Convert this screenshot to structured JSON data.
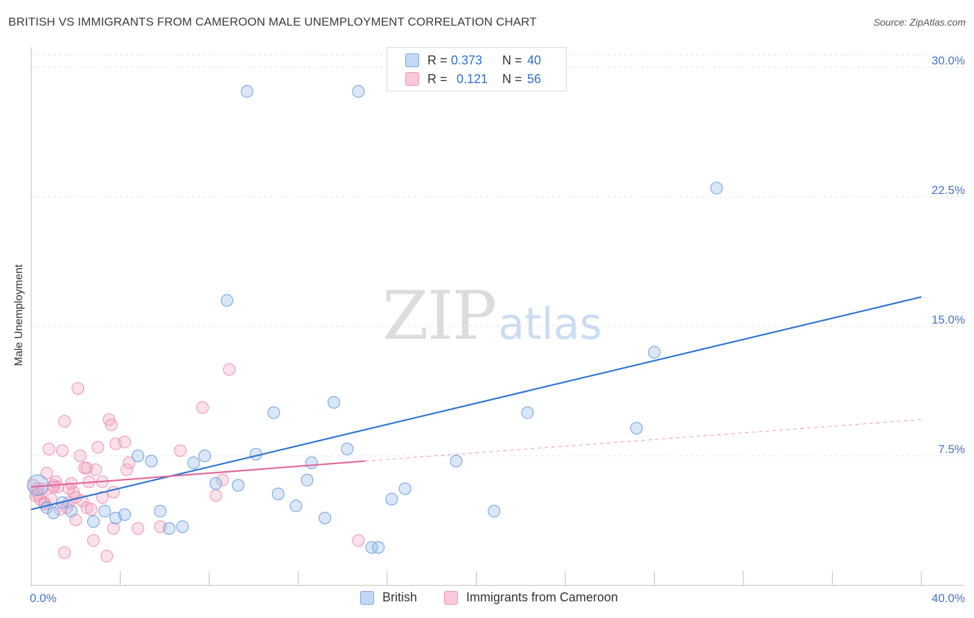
{
  "title": "BRITISH VS IMMIGRANTS FROM CAMEROON MALE UNEMPLOYMENT CORRELATION CHART",
  "source": "Source: ZipAtlas.com",
  "watermark": {
    "zip": "ZIP",
    "atlas": "atlas"
  },
  "colors": {
    "british_fill": "rgba(147,186,236,0.35)",
    "british_stroke": "#6a9ee0",
    "british_line": "#2e74d3",
    "cameroon_fill": "rgba(244,170,196,0.35)",
    "cameroon_stroke": "#ec8fb0",
    "cameroon_line": "#e0679a",
    "axis_text": "#3f73c9",
    "grid": "#e0e0e0"
  },
  "legend_top": {
    "rows": [
      {
        "r_label": "R =",
        "r_value": "0.373",
        "n_label": "N =",
        "n_value": "40"
      },
      {
        "r_label": "R =",
        "r_value": "0.121",
        "n_label": "N =",
        "n_value": "56"
      }
    ]
  },
  "legend_bottom": {
    "items": [
      {
        "label": "British"
      },
      {
        "label": "Immigrants from Cameroon"
      }
    ]
  },
  "chart_data": {
    "type": "scatter",
    "title": "BRITISH VS IMMIGRANTS FROM CAMEROON MALE UNEMPLOYMENT CORRELATION CHART",
    "xlabel": "",
    "ylabel": "Male Unemployment",
    "xlim": [
      0,
      40
    ],
    "ylim": [
      0,
      30
    ],
    "x_tick_labels": [
      "0.0%",
      "40.0%"
    ],
    "y_ticks": [
      7.5,
      15.0,
      22.5,
      30.0
    ],
    "y_tick_labels": [
      "7.5%",
      "15.0%",
      "22.5%",
      "30.0%"
    ],
    "grid": true,
    "legend_position": "top-center",
    "series": [
      {
        "name": "British",
        "R": 0.373,
        "N": 40,
        "trend": {
          "x": [
            0,
            40
          ],
          "y": [
            4.4,
            16.7
          ]
        },
        "points": [
          [
            0.3,
            5.8
          ],
          [
            0.7,
            4.5
          ],
          [
            1.0,
            4.2
          ],
          [
            1.4,
            4.8
          ],
          [
            1.8,
            4.3
          ],
          [
            2.8,
            3.7
          ],
          [
            3.3,
            4.3
          ],
          [
            3.8,
            3.9
          ],
          [
            4.2,
            4.1
          ],
          [
            4.8,
            7.5
          ],
          [
            5.4,
            7.2
          ],
          [
            5.8,
            4.3
          ],
          [
            6.2,
            3.3
          ],
          [
            6.8,
            3.4
          ],
          [
            7.3,
            7.1
          ],
          [
            7.8,
            7.5
          ],
          [
            8.3,
            5.9
          ],
          [
            8.8,
            16.5
          ],
          [
            9.3,
            5.8
          ],
          [
            9.7,
            28.6
          ],
          [
            10.1,
            7.6
          ],
          [
            10.9,
            10.0
          ],
          [
            11.1,
            5.3
          ],
          [
            11.9,
            4.6
          ],
          [
            12.4,
            6.1
          ],
          [
            12.6,
            7.1
          ],
          [
            13.2,
            3.9
          ],
          [
            13.6,
            10.6
          ],
          [
            14.2,
            7.9
          ],
          [
            14.7,
            28.6
          ],
          [
            15.3,
            2.2
          ],
          [
            15.6,
            2.2
          ],
          [
            16.2,
            5.0
          ],
          [
            16.8,
            5.6
          ],
          [
            19.1,
            7.2
          ],
          [
            20.8,
            4.3
          ],
          [
            22.3,
            10.0
          ],
          [
            27.2,
            9.1
          ],
          [
            28.0,
            13.5
          ],
          [
            30.8,
            23.0
          ]
        ]
      },
      {
        "name": "Immigrants from Cameroon",
        "R": 0.121,
        "N": 56,
        "trend": {
          "x": [
            0,
            15.0
          ],
          "y": [
            5.7,
            7.2
          ]
        },
        "trend_dashed": {
          "x": [
            15.0,
            40
          ],
          "y": [
            7.2,
            9.6
          ]
        },
        "points": [
          [
            0.1,
            5.8
          ],
          [
            0.2,
            5.2
          ],
          [
            0.3,
            5.3
          ],
          [
            0.4,
            5.0
          ],
          [
            0.5,
            5.6
          ],
          [
            0.6,
            4.8
          ],
          [
            0.7,
            6.5
          ],
          [
            0.8,
            7.9
          ],
          [
            0.9,
            5.0
          ],
          [
            1.0,
            5.8
          ],
          [
            1.1,
            6.0
          ],
          [
            1.2,
            5.7
          ],
          [
            1.3,
            4.4
          ],
          [
            1.4,
            7.8
          ],
          [
            1.5,
            1.9
          ],
          [
            1.5,
            9.5
          ],
          [
            1.6,
            4.5
          ],
          [
            1.7,
            5.6
          ],
          [
            1.8,
            5.9
          ],
          [
            1.9,
            5.4
          ],
          [
            2.0,
            5.1
          ],
          [
            2.0,
            3.8
          ],
          [
            2.1,
            11.4
          ],
          [
            2.2,
            7.5
          ],
          [
            2.3,
            4.9
          ],
          [
            2.4,
            6.8
          ],
          [
            2.5,
            6.8
          ],
          [
            2.5,
            4.5
          ],
          [
            2.6,
            6.0
          ],
          [
            2.8,
            2.6
          ],
          [
            2.9,
            6.7
          ],
          [
            3.0,
            8.0
          ],
          [
            3.2,
            6.0
          ],
          [
            3.2,
            5.1
          ],
          [
            3.4,
            1.7
          ],
          [
            3.5,
            9.6
          ],
          [
            3.6,
            9.3
          ],
          [
            3.7,
            3.3
          ],
          [
            3.7,
            5.4
          ],
          [
            3.8,
            8.2
          ],
          [
            4.2,
            8.3
          ],
          [
            4.3,
            6.7
          ],
          [
            4.4,
            7.1
          ],
          [
            4.8,
            3.3
          ],
          [
            5.8,
            3.4
          ],
          [
            6.7,
            7.8
          ],
          [
            7.7,
            10.3
          ],
          [
            8.3,
            5.2
          ],
          [
            8.6,
            6.1
          ],
          [
            8.9,
            12.5
          ],
          [
            14.7,
            2.6
          ],
          [
            0.3,
            5.6
          ],
          [
            0.6,
            4.7
          ],
          [
            1.0,
            5.7
          ],
          [
            1.7,
            4.8
          ],
          [
            2.7,
            4.4
          ]
        ]
      }
    ]
  }
}
